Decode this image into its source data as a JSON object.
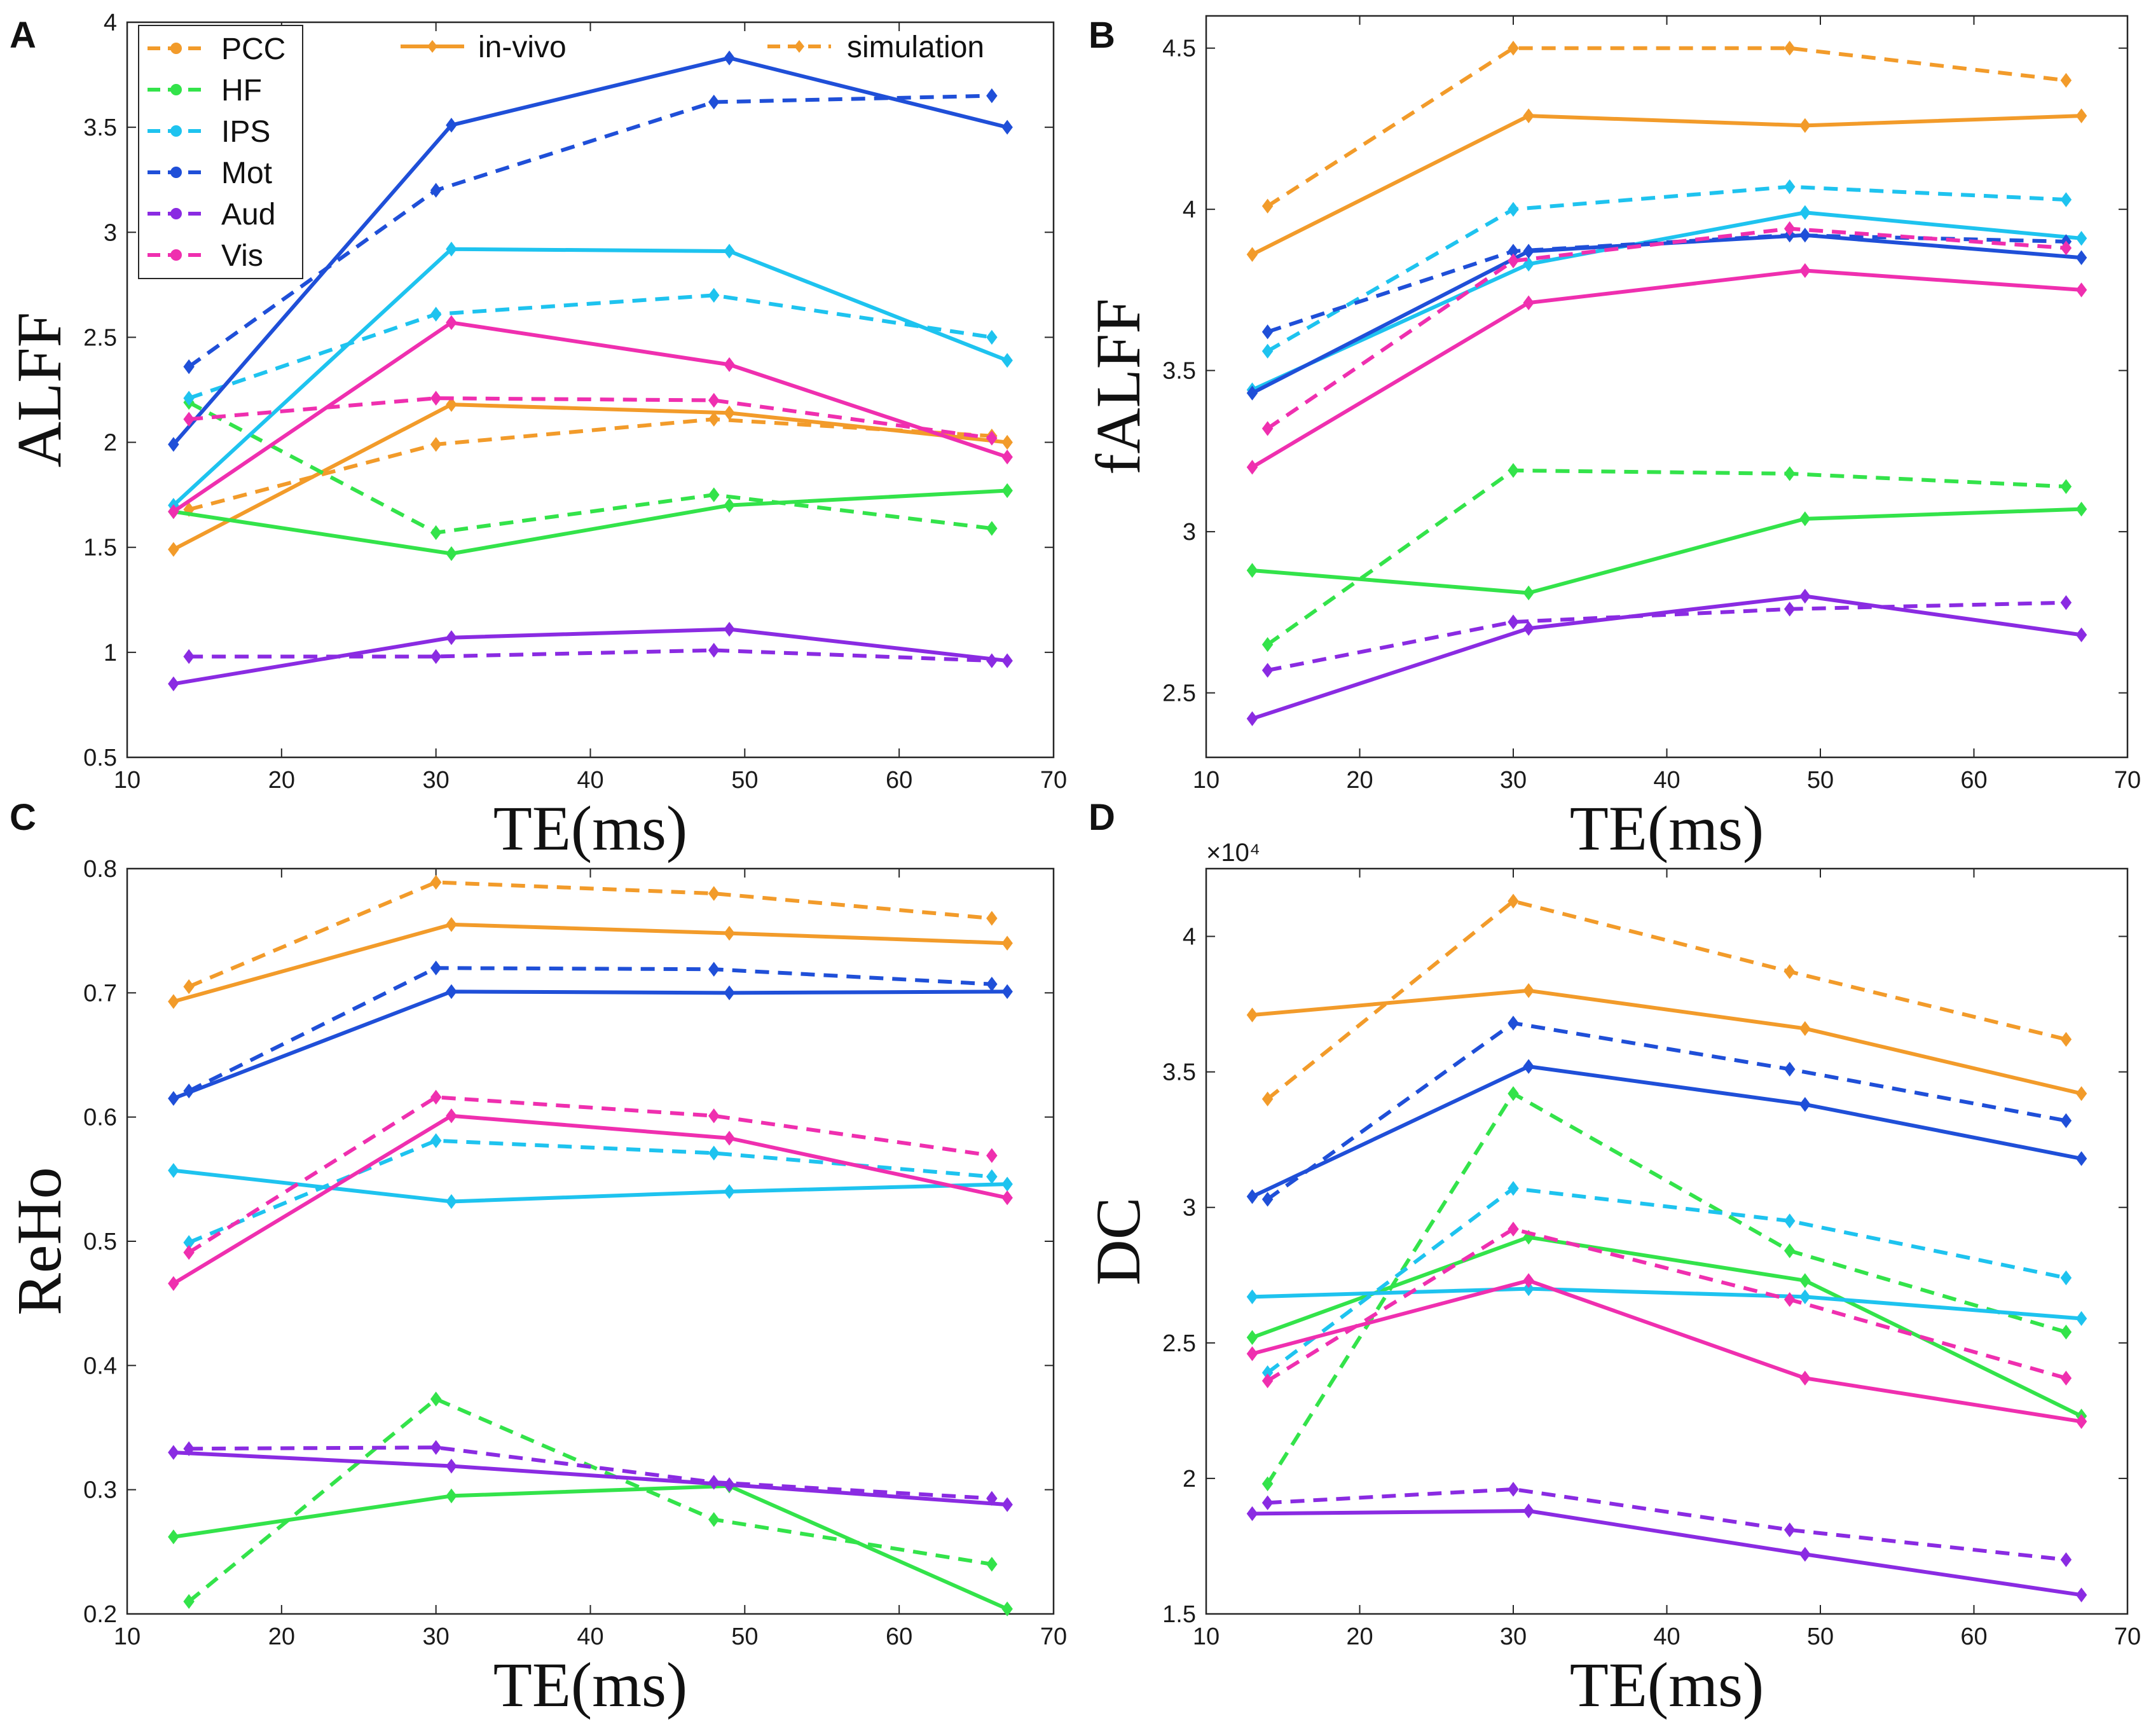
{
  "chart_data": [
    {
      "panel": "A",
      "type": "line",
      "ylabel": "ALFF",
      "xlabel": "TE(ms)",
      "xlim": [
        10,
        70
      ],
      "ylim": [
        0.5,
        4
      ],
      "xticks": [
        "10",
        "20",
        "30",
        "40",
        "50",
        "60",
        "70"
      ],
      "yticks": [
        "0.5",
        "1",
        "1.5",
        "2",
        "2.5",
        "3",
        "3.5",
        "4"
      ],
      "x_invivo": [
        13,
        31,
        49,
        67
      ],
      "x_sim": [
        14,
        30,
        48,
        66
      ],
      "series": [
        {
          "name": "PCC",
          "color": "#f29b2a",
          "invivo": [
            1.49,
            2.18,
            2.14,
            2.0
          ],
          "simulation": [
            1.68,
            1.99,
            2.11,
            2.03
          ]
        },
        {
          "name": "HF",
          "color": "#33e34a",
          "invivo": [
            1.67,
            1.47,
            1.7,
            1.77
          ],
          "simulation": [
            2.19,
            1.57,
            1.75,
            1.59
          ]
        },
        {
          "name": "IPS",
          "color": "#1ec3ef",
          "invivo": [
            1.7,
            2.92,
            2.91,
            2.39
          ],
          "simulation": [
            2.21,
            2.61,
            2.7,
            2.5
          ]
        },
        {
          "name": "Mot",
          "color": "#1f4fd8",
          "invivo": [
            1.99,
            3.51,
            3.83,
            3.5
          ],
          "simulation": [
            2.36,
            3.2,
            3.62,
            3.65
          ]
        },
        {
          "name": "Aud",
          "color": "#8a2be2",
          "invivo": [
            0.85,
            1.07,
            1.11,
            0.96
          ],
          "simulation": [
            0.98,
            0.98,
            1.01,
            0.96
          ]
        },
        {
          "name": "Vis",
          "color": "#ef2faf",
          "invivo": [
            1.67,
            2.57,
            2.37,
            1.93
          ],
          "simulation": [
            2.11,
            2.21,
            2.2,
            2.02
          ]
        }
      ]
    },
    {
      "panel": "B",
      "type": "line",
      "ylabel": "fALFF",
      "xlabel": "TE(ms)",
      "xlim": [
        10,
        70
      ],
      "ylim": [
        2.3,
        4.6
      ],
      "xticks": [
        "10",
        "20",
        "30",
        "40",
        "50",
        "60",
        "70"
      ],
      "yticks": [
        "2.5",
        "3",
        "3.5",
        "4",
        "4.5"
      ],
      "x_invivo": [
        13,
        31,
        49,
        67
      ],
      "x_sim": [
        14,
        30,
        48,
        66
      ],
      "series": [
        {
          "name": "PCC",
          "color": "#f29b2a",
          "invivo": [
            3.86,
            4.29,
            4.26,
            4.29
          ],
          "simulation": [
            4.01,
            4.5,
            4.5,
            4.4
          ]
        },
        {
          "name": "HF",
          "color": "#33e34a",
          "invivo": [
            2.88,
            2.81,
            3.04,
            3.07
          ],
          "simulation": [
            2.65,
            3.19,
            3.18,
            3.14
          ]
        },
        {
          "name": "IPS",
          "color": "#1ec3ef",
          "invivo": [
            3.44,
            3.83,
            3.99,
            3.91
          ],
          "simulation": [
            3.56,
            4.0,
            4.07,
            4.03
          ]
        },
        {
          "name": "Mot",
          "color": "#1f4fd8",
          "invivo": [
            3.43,
            3.87,
            3.92,
            3.85
          ],
          "simulation": [
            3.62,
            3.87,
            3.92,
            3.9
          ]
        },
        {
          "name": "Aud",
          "color": "#8a2be2",
          "invivo": [
            2.42,
            2.7,
            2.8,
            2.68
          ],
          "simulation": [
            2.57,
            2.72,
            2.76,
            2.78
          ]
        },
        {
          "name": "Vis",
          "color": "#ef2faf",
          "invivo": [
            3.2,
            3.71,
            3.81,
            3.75
          ],
          "simulation": [
            3.32,
            3.84,
            3.94,
            3.88
          ]
        }
      ]
    },
    {
      "panel": "C",
      "type": "line",
      "ylabel": "ReHo",
      "xlabel": "TE(ms)",
      "xlim": [
        10,
        70
      ],
      "ylim": [
        0.2,
        0.8
      ],
      "xticks": [
        "10",
        "20",
        "30",
        "40",
        "50",
        "60",
        "70"
      ],
      "yticks": [
        "0.2",
        "0.3",
        "0.4",
        "0.5",
        "0.6",
        "0.7",
        "0.8"
      ],
      "x_invivo": [
        13,
        31,
        49,
        67
      ],
      "x_sim": [
        14,
        30,
        48,
        66
      ],
      "series": [
        {
          "name": "PCC",
          "color": "#f29b2a",
          "invivo": [
            0.693,
            0.755,
            0.748,
            0.74
          ],
          "simulation": [
            0.705,
            0.789,
            0.78,
            0.76
          ]
        },
        {
          "name": "HF",
          "color": "#33e34a",
          "invivo": [
            0.262,
            0.295,
            0.303,
            0.204
          ],
          "simulation": [
            0.21,
            0.373,
            0.276,
            0.24
          ]
        },
        {
          "name": "IPS",
          "color": "#1ec3ef",
          "invivo": [
            0.557,
            0.532,
            0.54,
            0.546
          ],
          "simulation": [
            0.499,
            0.581,
            0.571,
            0.552
          ]
        },
        {
          "name": "Mot",
          "color": "#1f4fd8",
          "invivo": [
            0.615,
            0.701,
            0.7,
            0.701
          ],
          "simulation": [
            0.621,
            0.72,
            0.719,
            0.707
          ]
        },
        {
          "name": "Aud",
          "color": "#8a2be2",
          "invivo": [
            0.33,
            0.319,
            0.304,
            0.288
          ],
          "simulation": [
            0.333,
            0.334,
            0.306,
            0.293
          ]
        },
        {
          "name": "Vis",
          "color": "#ef2faf",
          "invivo": [
            0.466,
            0.601,
            0.583,
            0.535
          ],
          "simulation": [
            0.491,
            0.616,
            0.601,
            0.569
          ]
        }
      ]
    },
    {
      "panel": "D",
      "type": "line",
      "ylabel": "DC",
      "xlabel": "TE(ms)",
      "exponent_label": "×10⁴",
      "xlim": [
        10,
        70
      ],
      "ylim": [
        1.5,
        4.25
      ],
      "xticks": [
        "10",
        "20",
        "30",
        "40",
        "50",
        "60",
        "70"
      ],
      "yticks": [
        "1.5",
        "2",
        "2.5",
        "3",
        "3.5",
        "4"
      ],
      "x_invivo": [
        13,
        31,
        49,
        67
      ],
      "x_sim": [
        14,
        30,
        48,
        66
      ],
      "series": [
        {
          "name": "PCC",
          "color": "#f29b2a",
          "invivo": [
            3.71,
            3.8,
            3.66,
            3.42
          ],
          "simulation": [
            3.4,
            4.13,
            3.87,
            3.62
          ]
        },
        {
          "name": "HF",
          "color": "#33e34a",
          "invivo": [
            2.52,
            2.89,
            2.73,
            2.23
          ],
          "simulation": [
            1.98,
            3.42,
            2.84,
            2.54
          ]
        },
        {
          "name": "IPS",
          "color": "#1ec3ef",
          "invivo": [
            2.67,
            2.7,
            2.67,
            2.59
          ],
          "simulation": [
            2.39,
            3.07,
            2.95,
            2.74
          ]
        },
        {
          "name": "Mot",
          "color": "#1f4fd8",
          "invivo": [
            3.04,
            3.52,
            3.38,
            3.18
          ],
          "simulation": [
            3.03,
            3.68,
            3.51,
            3.32
          ]
        },
        {
          "name": "Aud",
          "color": "#8a2be2",
          "invivo": [
            1.87,
            1.88,
            1.72,
            1.57
          ],
          "simulation": [
            1.91,
            1.96,
            1.81,
            1.7
          ]
        },
        {
          "name": "Vis",
          "color": "#ef2faf",
          "invivo": [
            2.46,
            2.73,
            2.37,
            2.21
          ],
          "simulation": [
            2.36,
            2.92,
            2.66,
            2.37
          ]
        }
      ]
    }
  ],
  "legend": {
    "groups": [
      "PCC",
      "HF",
      "IPS",
      "Mot",
      "Aud",
      "Vis"
    ],
    "invivo_label": "in-vivo",
    "simulation_label": "simulation",
    "style_color": "#f29b2a"
  }
}
